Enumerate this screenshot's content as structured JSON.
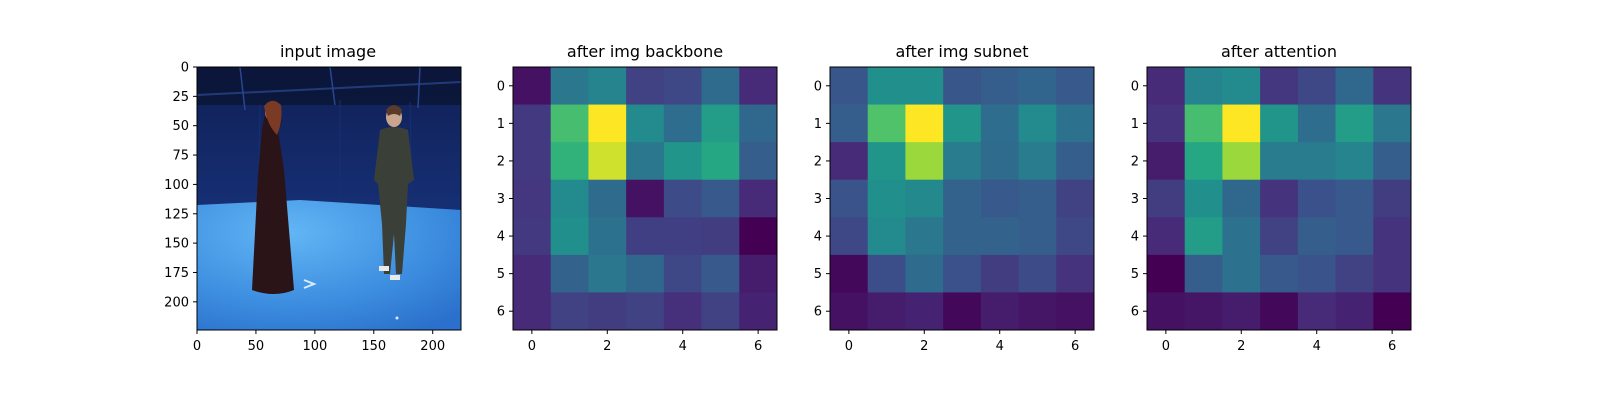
{
  "chart_data": [
    {
      "type": "image",
      "title": "input image",
      "xlim": [
        0,
        224
      ],
      "ylim": [
        224,
        0
      ],
      "x_ticks": [
        0,
        50,
        100,
        150,
        200
      ],
      "y_ticks": [
        0,
        25,
        50,
        75,
        100,
        125,
        150,
        175,
        200
      ]
    },
    {
      "type": "heatmap",
      "title": "after img backbone",
      "colormap": "viridis",
      "x_ticks": [
        0,
        2,
        4,
        6
      ],
      "y_ticks": [
        0,
        1,
        2,
        3,
        4,
        5,
        6
      ],
      "values": [
        [
          0.05,
          0.4,
          0.45,
          0.2,
          0.22,
          0.35,
          0.12
        ],
        [
          0.17,
          0.7,
          1.0,
          0.48,
          0.36,
          0.55,
          0.34
        ],
        [
          0.17,
          0.65,
          0.93,
          0.4,
          0.52,
          0.6,
          0.3
        ],
        [
          0.16,
          0.48,
          0.35,
          0.05,
          0.23,
          0.28,
          0.12
        ],
        [
          0.17,
          0.5,
          0.38,
          0.19,
          0.19,
          0.18,
          0.0
        ],
        [
          0.12,
          0.32,
          0.4,
          0.34,
          0.22,
          0.28,
          0.08
        ],
        [
          0.12,
          0.2,
          0.18,
          0.2,
          0.14,
          0.2,
          0.1
        ]
      ]
    },
    {
      "type": "heatmap",
      "title": "after img subnet",
      "colormap": "viridis",
      "x_ticks": [
        0,
        2,
        4,
        6
      ],
      "y_ticks": [
        0,
        1,
        2,
        3,
        4,
        5,
        6
      ],
      "values": [
        [
          0.27,
          0.5,
          0.5,
          0.27,
          0.3,
          0.33,
          0.28
        ],
        [
          0.3,
          0.72,
          1.0,
          0.52,
          0.36,
          0.48,
          0.38
        ],
        [
          0.12,
          0.52,
          0.85,
          0.42,
          0.35,
          0.42,
          0.3
        ],
        [
          0.26,
          0.5,
          0.47,
          0.32,
          0.28,
          0.3,
          0.2
        ],
        [
          0.22,
          0.48,
          0.4,
          0.32,
          0.32,
          0.3,
          0.22
        ],
        [
          0.02,
          0.24,
          0.35,
          0.25,
          0.18,
          0.23,
          0.15
        ],
        [
          0.05,
          0.08,
          0.1,
          0.02,
          0.08,
          0.06,
          0.05
        ]
      ]
    },
    {
      "type": "heatmap",
      "title": "after attention",
      "colormap": "viridis",
      "x_ticks": [
        0,
        2,
        4,
        6
      ],
      "y_ticks": [
        0,
        1,
        2,
        3,
        4,
        5,
        6
      ],
      "values": [
        [
          0.12,
          0.45,
          0.48,
          0.16,
          0.22,
          0.34,
          0.15
        ],
        [
          0.15,
          0.7,
          1.0,
          0.52,
          0.36,
          0.55,
          0.4
        ],
        [
          0.08,
          0.6,
          0.85,
          0.42,
          0.42,
          0.45,
          0.3
        ],
        [
          0.18,
          0.5,
          0.34,
          0.15,
          0.25,
          0.28,
          0.18
        ],
        [
          0.12,
          0.55,
          0.38,
          0.2,
          0.3,
          0.28,
          0.15
        ],
        [
          0.0,
          0.3,
          0.38,
          0.28,
          0.26,
          0.2,
          0.15
        ],
        [
          0.05,
          0.06,
          0.08,
          0.02,
          0.12,
          0.1,
          0.0
        ]
      ]
    }
  ],
  "colors": {
    "photo_wall": "#1a3a8a",
    "photo_floor": "#3a8ee0",
    "photo_floor_light": "#5fb2f2"
  }
}
